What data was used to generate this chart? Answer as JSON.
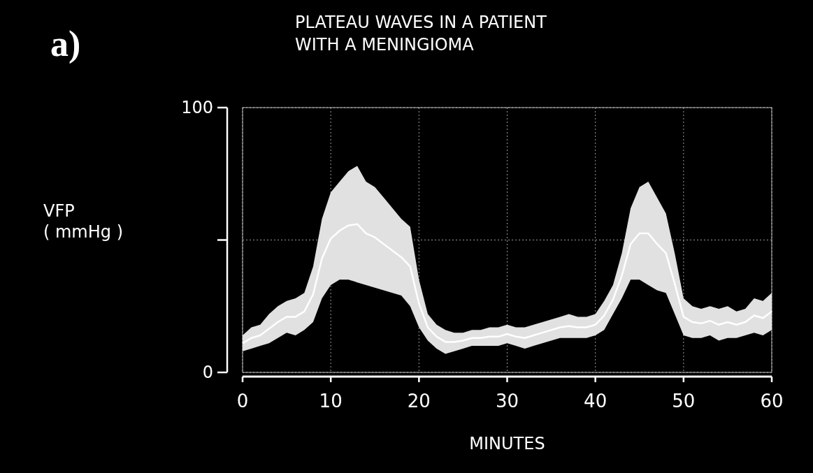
{
  "chart_data": {
    "type": "line",
    "title": "PLATEAU WAVES IN A PATIENT WITH A MENINGIOMA",
    "xlabel": "MINUTES",
    "ylabel": "VFP ( mmHg )",
    "annotations": [
      "a)"
    ],
    "x": [
      0,
      1,
      2,
      3,
      4,
      5,
      6,
      7,
      8,
      9,
      10,
      11,
      12,
      13,
      14,
      15,
      16,
      17,
      18,
      19,
      20,
      21,
      22,
      23,
      24,
      25,
      26,
      27,
      28,
      29,
      30,
      31,
      32,
      33,
      34,
      35,
      36,
      37,
      38,
      39,
      40,
      41,
      42,
      43,
      44,
      45,
      46,
      47,
      48,
      49,
      50,
      51,
      52,
      53,
      54,
      55,
      56,
      57,
      58,
      59,
      60
    ],
    "series": [
      {
        "color": "#ffffff",
        "values": [
          11,
          13,
          14,
          16.5,
          19,
          21,
          21,
          23,
          29.5,
          43,
          50.5,
          53.5,
          55.5,
          56,
          52.5,
          51,
          48.5,
          46,
          43.5,
          40,
          26,
          17,
          13.5,
          11.5,
          11.5,
          12,
          13,
          13,
          13.5,
          13.5,
          14.5,
          13.5,
          13,
          14,
          15,
          16,
          17,
          17.5,
          17,
          17,
          18,
          21.5,
          27.5,
          36.5,
          48.5,
          52.5,
          52.5,
          48.5,
          45,
          33.5,
          21,
          19,
          18.5,
          19.5,
          18,
          19,
          18,
          19,
          21.5,
          20.5,
          23
        ],
        "lower": [
          8,
          9,
          10,
          11,
          13,
          15,
          14,
          16,
          19,
          28,
          33,
          35,
          35,
          34,
          33,
          32,
          31,
          30,
          29,
          25,
          17,
          12,
          9,
          7,
          8,
          9,
          10,
          10,
          10,
          10,
          11,
          10,
          9,
          10,
          11,
          12,
          13,
          13,
          13,
          13,
          14,
          16,
          22,
          28,
          35,
          35,
          33,
          31,
          30,
          22,
          14,
          13,
          13,
          14,
          12,
          13,
          13,
          14,
          15,
          14,
          16
        ],
        "upper": [
          14,
          17,
          18,
          22,
          25,
          27,
          28,
          30,
          40,
          58,
          68,
          72,
          76,
          78,
          72,
          70,
          66,
          62,
          58,
          55,
          35,
          22,
          18,
          16,
          15,
          15,
          16,
          16,
          17,
          17,
          18,
          17,
          17,
          18,
          19,
          20,
          21,
          22,
          21,
          21,
          22,
          27,
          33,
          45,
          62,
          70,
          72,
          66,
          60,
          45,
          28,
          25,
          24,
          25,
          24,
          25,
          23,
          24,
          28,
          27,
          30
        ]
      }
    ],
    "xlim": [
      0,
      60
    ],
    "xticks": [
      0,
      10,
      20,
      30,
      40,
      50,
      60
    ],
    "ylim": [
      0,
      100
    ],
    "yticks": [
      0,
      {
        "value": 50,
        "label": null
      },
      100
    ],
    "grid": true
  }
}
